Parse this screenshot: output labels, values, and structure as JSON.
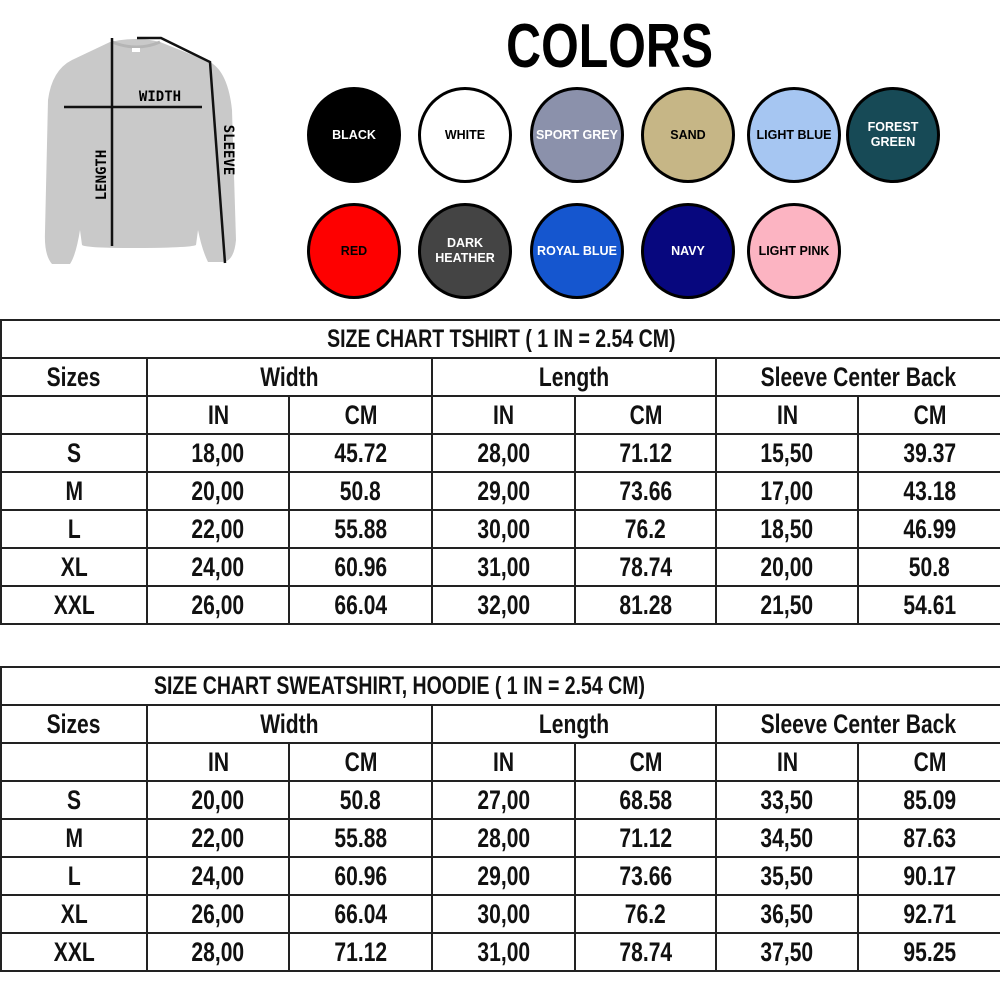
{
  "diagram": {
    "width_label": "WIDTH",
    "length_label": "LENGTH",
    "sleeve_label": "SLEEVE",
    "garment_color": "#c9c9c9"
  },
  "colors": {
    "title": "COLORS",
    "swatches": [
      {
        "name": "BLACK",
        "line2": "",
        "fill": "#000000",
        "text": "#ffffff"
      },
      {
        "name": "WHITE",
        "line2": "",
        "fill": "#ffffff",
        "text": "#000000"
      },
      {
        "name": "SPORT GREY",
        "line2": "",
        "fill": "#8b91ab",
        "text": "#ffffff"
      },
      {
        "name": "SAND",
        "line2": "",
        "fill": "#c6b686",
        "text": "#000000"
      },
      {
        "name": "LIGHT BLUE",
        "line2": "",
        "fill": "#a6c6f2",
        "text": "#000000"
      },
      {
        "name": "FOREST",
        "line2": "GREEN",
        "fill": "#174a56",
        "text": "#ffffff"
      },
      {
        "name": "RED",
        "line2": "",
        "fill": "#fe0000",
        "text": "#000000"
      },
      {
        "name": "DARK",
        "line2": "HEATHER",
        "fill": "#444444",
        "text": "#ffffff"
      },
      {
        "name": "ROYAL BLUE",
        "line2": "",
        "fill": "#1556cf",
        "text": "#ffffff"
      },
      {
        "name": "NAVY",
        "line2": "",
        "fill": "#07077e",
        "text": "#ffffff"
      },
      {
        "name": "LIGHT PINK",
        "line2": "",
        "fill": "#fcb4c2",
        "text": "#000000"
      }
    ]
  },
  "tables": [
    {
      "title": "SIZE CHART TSHIRT ( 1 IN = 2.54 CM)",
      "headers": [
        "Sizes",
        "Width",
        "Length",
        "Sleeve Center Back"
      ],
      "units": [
        "IN",
        "CM",
        "IN",
        "CM",
        "IN",
        "CM"
      ],
      "rows": [
        [
          "S",
          "18,00",
          "45.72",
          "28,00",
          "71.12",
          "15,50",
          "39.37"
        ],
        [
          "M",
          "20,00",
          "50.8",
          "29,00",
          "73.66",
          "17,00",
          "43.18"
        ],
        [
          "L",
          "22,00",
          "55.88",
          "30,00",
          "76.2",
          "18,50",
          "46.99"
        ],
        [
          "XL",
          "24,00",
          "60.96",
          "31,00",
          "78.74",
          "20,00",
          "50.8"
        ],
        [
          "XXL",
          "26,00",
          "66.04",
          "32,00",
          "81.28",
          "21,50",
          "54.61"
        ]
      ]
    },
    {
      "title": "SIZE CHART  SWEATSHIRT,  HOODIE ( 1 IN = 2.54 CM)",
      "headers": [
        "Sizes",
        "Width",
        "Length",
        "Sleeve Center Back"
      ],
      "units": [
        "IN",
        "CM",
        "IN",
        "CM",
        "IN",
        "CM"
      ],
      "rows": [
        [
          "S",
          "20,00",
          "50.8",
          "27,00",
          "68.58",
          "33,50",
          "85.09"
        ],
        [
          "M",
          "22,00",
          "55.88",
          "28,00",
          "71.12",
          "34,50",
          "87.63"
        ],
        [
          "L",
          "24,00",
          "60.96",
          "29,00",
          "73.66",
          "35,50",
          "90.17"
        ],
        [
          "XL",
          "26,00",
          "66.04",
          "30,00",
          "76.2",
          "36,50",
          "92.71"
        ],
        [
          "XXL",
          "28,00",
          "71.12",
          "31,00",
          "78.74",
          "37,50",
          "95.25"
        ]
      ]
    }
  ]
}
